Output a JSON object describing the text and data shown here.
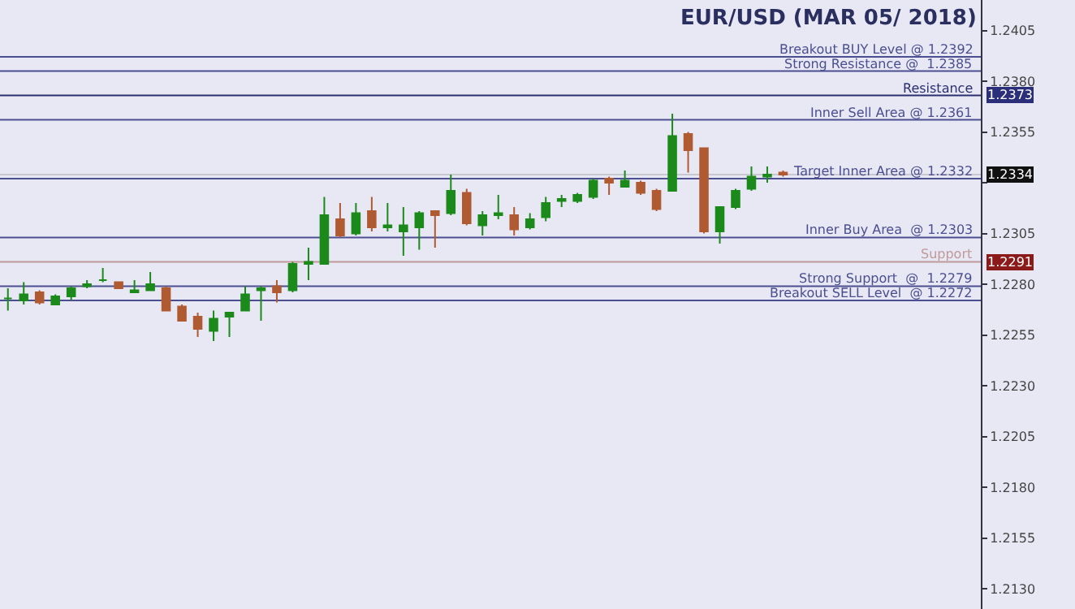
{
  "chart_data": {
    "type": "candlestick",
    "title": "EUR/USD (MAR 05/ 2018)",
    "categories": [
      null,
      null,
      null,
      null,
      null,
      null,
      null,
      null,
      null,
      null,
      null,
      null,
      null,
      null,
      null,
      null,
      null,
      null,
      null,
      null,
      null,
      null,
      null,
      null,
      null,
      null,
      null,
      null,
      null,
      null,
      null,
      null,
      null,
      null,
      null,
      null,
      null,
      null,
      null,
      null,
      null,
      null,
      null,
      null,
      null,
      null,
      null,
      null,
      null,
      null,
      null,
      null,
      null,
      null,
      null,
      null,
      null,
      null,
      null,
      null,
      null,
      null
    ],
    "ohlc": [
      [
        1.2273,
        1.2278,
        1.2267,
        1.2273
      ],
      [
        1.2272,
        1.2281,
        1.227,
        1.2275
      ],
      [
        1.2276,
        1.2277,
        1.227,
        1.2271
      ],
      [
        1.227,
        1.2275,
        1.227,
        1.2274
      ],
      [
        1.2274,
        1.2279,
        1.2272,
        1.2278
      ],
      [
        1.2279,
        1.2282,
        1.2278,
        1.228
      ],
      [
        1.2282,
        1.2288,
        1.2281,
        1.2282
      ],
      [
        1.2281,
        1.2281,
        1.2278,
        1.2278
      ],
      [
        1.2276,
        1.2282,
        1.2276,
        1.2277
      ],
      [
        1.2277,
        1.2286,
        1.2277,
        1.228
      ],
      [
        1.2278,
        1.2279,
        1.2267,
        1.2267
      ],
      [
        1.2269,
        1.227,
        1.2262,
        1.2262
      ],
      [
        1.2264,
        1.2266,
        1.2254,
        1.2258
      ],
      [
        1.2257,
        1.2267,
        1.2252,
        1.2263
      ],
      [
        1.2264,
        1.2266,
        1.2254,
        1.2266
      ],
      [
        1.2267,
        1.2279,
        1.2267,
        1.2275
      ],
      [
        1.2277,
        1.2279,
        1.2262,
        1.2278
      ],
      [
        1.2279,
        1.2282,
        1.2271,
        1.2276
      ],
      [
        1.2277,
        1.2291,
        1.2276,
        1.229
      ],
      [
        1.229,
        1.2298,
        1.2282,
        1.2291
      ],
      [
        1.229,
        1.2323,
        1.229,
        1.2314
      ],
      [
        1.2312,
        1.232,
        1.2303,
        1.2304
      ],
      [
        1.2305,
        1.232,
        1.2304,
        1.2315
      ],
      [
        1.2316,
        1.2323,
        1.2306,
        1.2308
      ],
      [
        1.2308,
        1.232,
        1.2306,
        1.2309
      ],
      [
        1.2306,
        1.2318,
        1.2294,
        1.2309
      ],
      [
        1.2308,
        1.2316,
        1.2297,
        1.2315
      ],
      [
        1.2316,
        1.2316,
        1.2298,
        1.2314
      ],
      [
        1.2315,
        1.2334,
        1.2314,
        1.2326
      ],
      [
        1.2325,
        1.2327,
        1.2309,
        1.231
      ],
      [
        1.2309,
        1.2316,
        1.2304,
        1.2314
      ],
      [
        1.2314,
        1.2324,
        1.2312,
        1.2315
      ],
      [
        1.2314,
        1.2318,
        1.2304,
        1.2307
      ],
      [
        1.2308,
        1.2315,
        1.2307,
        1.2312
      ],
      [
        1.2313,
        1.2323,
        1.2311,
        1.232
      ],
      [
        1.2321,
        1.2324,
        1.2318,
        1.2322
      ],
      [
        1.2321,
        1.2325,
        1.232,
        1.2324
      ],
      [
        1.2323,
        1.2332,
        1.2322,
        1.2331
      ],
      [
        1.2332,
        1.2333,
        1.2324,
        1.233
      ],
      [
        1.2328,
        1.2336,
        1.2328,
        1.2331
      ],
      [
        1.233,
        1.2331,
        1.2324,
        1.2325
      ],
      [
        1.2326,
        1.2327,
        1.2316,
        1.2317
      ],
      [
        1.2326,
        1.2364,
        1.2326,
        1.2353
      ],
      [
        1.2354,
        1.2355,
        1.2335,
        1.2346
      ],
      [
        1.2347,
        1.2347,
        1.2305,
        1.2306
      ],
      [
        1.2306,
        1.2318,
        1.23,
        1.2318
      ],
      [
        1.2318,
        1.2327,
        1.2317,
        1.2326
      ],
      [
        1.2327,
        1.2338,
        1.2326,
        1.2333
      ],
      [
        1.2333,
        1.2338,
        1.233,
        1.2334
      ],
      [
        1.2335,
        1.2336,
        1.2333,
        1.2334
      ],
      null,
      null,
      null,
      null,
      null,
      null,
      null,
      null,
      null,
      null,
      null,
      null
    ],
    "ylim": [
      1.212,
      1.242
    ],
    "yticks": [
      {
        "value": 1.213,
        "label": "1.2130"
      },
      1.2155,
      {
        "value": 1.218,
        "label": "1.2180"
      },
      1.2205,
      {
        "value": 1.223,
        "label": "1.2230"
      },
      1.2255,
      {
        "value": 1.228,
        "label": "1.2280"
      },
      1.2305,
      {
        "value": 1.233,
        "label": null
      },
      1.2355,
      {
        "value": 1.238,
        "label": "1.2380"
      },
      1.2405
    ],
    "ref_lines": [
      {
        "axis": "y",
        "value": 1.2392,
        "label": "Breakout BUY Level @ 1.2392",
        "color": "#4b4f8f"
      },
      {
        "axis": "y",
        "value": 1.2385,
        "label": "Strong Resistance @  1.2385",
        "color": "#4b4f8f"
      },
      {
        "axis": "y",
        "value": 1.2373,
        "label": "Resistance",
        "color": "#2b2f6f"
      },
      {
        "axis": "y",
        "value": 1.2361,
        "label": "Inner Sell Area @ 1.2361",
        "color": "#4b4f8f"
      },
      {
        "axis": "y",
        "value": 1.2334,
        "color": "#c8c8d0"
      },
      {
        "axis": "y",
        "value": 1.2332,
        "label": "Target Inner Area @ 1.2332",
        "color": "#4b4f8f"
      },
      {
        "axis": "y",
        "value": 1.2303,
        "label": "Inner Buy Area  @ 1.2303",
        "color": "#4b4f8f"
      },
      {
        "axis": "y",
        "value": 1.2291,
        "label": "Support",
        "color": "#c09a9a"
      },
      {
        "axis": "y",
        "value": 1.2279,
        "label": "Strong Support  @  1.2279",
        "color": "#4b4f8f"
      },
      {
        "axis": "y",
        "value": 1.2272,
        "label": "Breakout SELL Level  @ 1.2272",
        "color": "#4b4f8f"
      }
    ],
    "annotations": [
      "1.2373",
      "1.2334",
      "1.2291"
    ],
    "grid": false
  }
}
